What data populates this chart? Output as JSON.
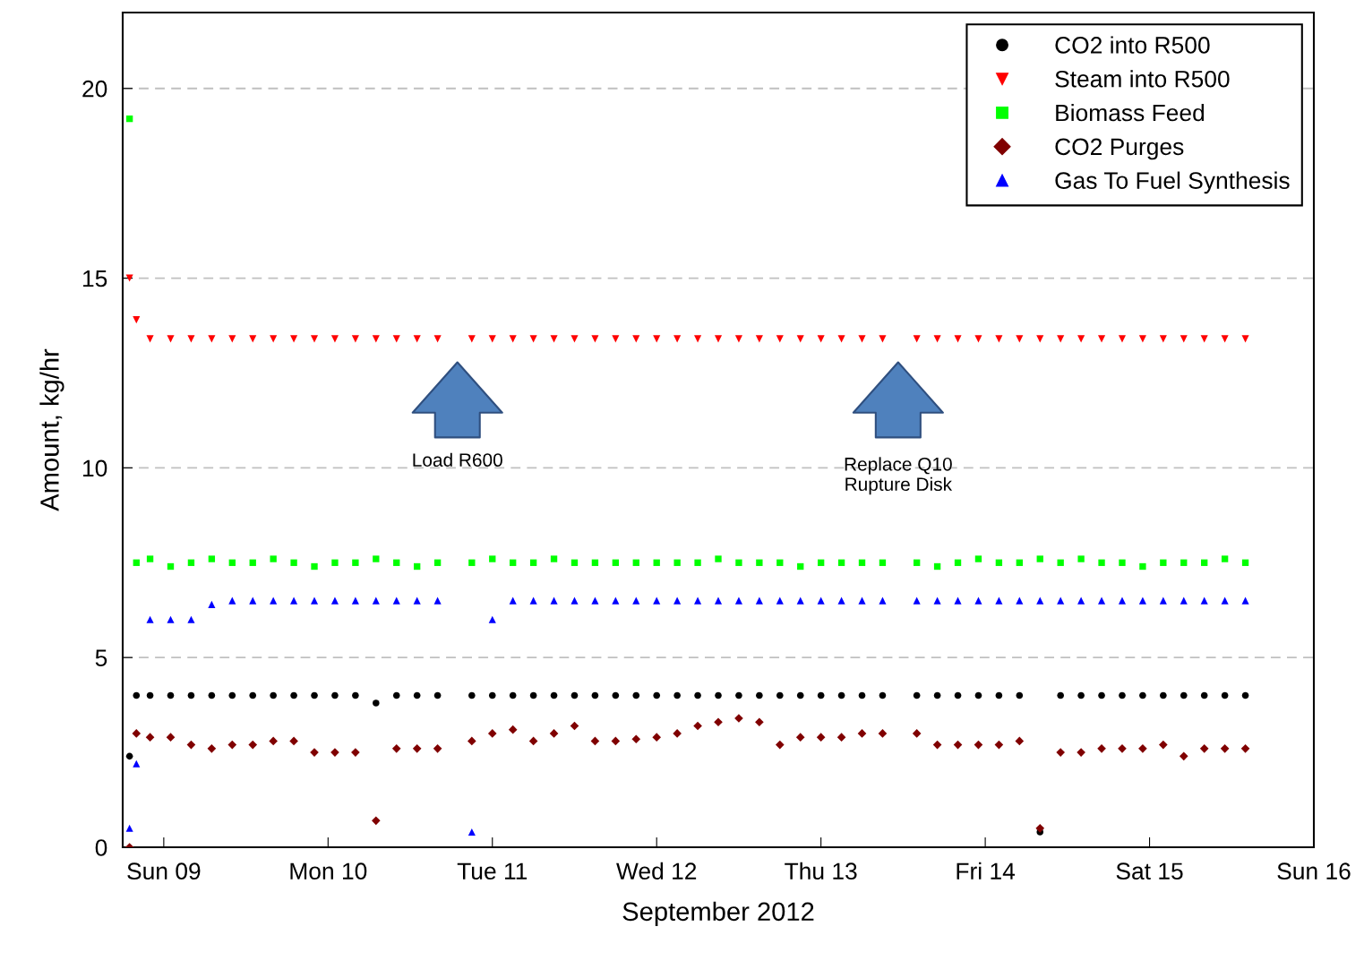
{
  "chart_data": {
    "type": "scatter",
    "xlabel": "September 2012",
    "ylabel": "Amount, kg/hr",
    "x": [
      "2012-09-08T19:00",
      "2012-09-08T20:00",
      "2012-09-08T22:00",
      "2012-09-09T01:00",
      "2012-09-09T04:00",
      "2012-09-09T07:00",
      "2012-09-09T10:00",
      "2012-09-09T13:00",
      "2012-09-09T16:00",
      "2012-09-09T19:00",
      "2012-09-09T22:00",
      "2012-09-10T01:00",
      "2012-09-10T04:00",
      "2012-09-10T07:00",
      "2012-09-10T10:00",
      "2012-09-10T13:00",
      "2012-09-10T16:00",
      "2012-09-10T21:00",
      "2012-09-11T00:00",
      "2012-09-11T03:00",
      "2012-09-11T06:00",
      "2012-09-11T09:00",
      "2012-09-11T12:00",
      "2012-09-11T15:00",
      "2012-09-11T18:00",
      "2012-09-11T21:00",
      "2012-09-12T00:00",
      "2012-09-12T03:00",
      "2012-09-12T06:00",
      "2012-09-12T09:00",
      "2012-09-12T12:00",
      "2012-09-12T15:00",
      "2012-09-12T18:00",
      "2012-09-12T21:00",
      "2012-09-13T00:00",
      "2012-09-13T03:00",
      "2012-09-13T06:00",
      "2012-09-13T09:00",
      "2012-09-13T14:00",
      "2012-09-13T17:00",
      "2012-09-13T20:00",
      "2012-09-13T23:00",
      "2012-09-14T02:00",
      "2012-09-14T05:00",
      "2012-09-14T08:00",
      "2012-09-14T11:00",
      "2012-09-14T14:00",
      "2012-09-14T17:00",
      "2012-09-14T20:00",
      "2012-09-14T23:00",
      "2012-09-15T02:00",
      "2012-09-15T05:00",
      "2012-09-15T08:00",
      "2012-09-15T11:00",
      "2012-09-15T14:00"
    ],
    "series": [
      {
        "name": "CO2 into R500",
        "color": "#000000",
        "marker": "circle",
        "values": [
          2.4,
          4.0,
          4.0,
          4.0,
          4.0,
          4.0,
          4.0,
          4.0,
          4.0,
          4.0,
          4.0,
          4.0,
          4.0,
          3.8,
          4.0,
          4.0,
          4.0,
          4.0,
          4.0,
          4.0,
          4.0,
          4.0,
          4.0,
          4.0,
          4.0,
          4.0,
          4.0,
          4.0,
          4.0,
          4.0,
          4.0,
          4.0,
          4.0,
          4.0,
          4.0,
          4.0,
          4.0,
          4.0,
          4.0,
          4.0,
          4.0,
          4.0,
          4.0,
          4.0,
          0.4,
          4.0,
          4.0,
          4.0,
          4.0,
          4.0,
          4.0,
          4.0,
          4.0,
          4.0,
          4.0
        ]
      },
      {
        "name": "Steam into R500",
        "color": "#ff0000",
        "marker": "triangle_down",
        "values": [
          15.0,
          13.9,
          13.4,
          13.4,
          13.4,
          13.4,
          13.4,
          13.4,
          13.4,
          13.4,
          13.4,
          13.4,
          13.4,
          13.4,
          13.4,
          13.4,
          13.4,
          13.4,
          13.4,
          13.4,
          13.4,
          13.4,
          13.4,
          13.4,
          13.4,
          13.4,
          13.4,
          13.4,
          13.4,
          13.4,
          13.4,
          13.4,
          13.4,
          13.4,
          13.4,
          13.4,
          13.4,
          13.4,
          13.4,
          13.4,
          13.4,
          13.4,
          13.4,
          13.4,
          13.4,
          13.4,
          13.4,
          13.4,
          13.4,
          13.4,
          13.4,
          13.4,
          13.4,
          13.4,
          13.4
        ]
      },
      {
        "name": "Biomass Feed",
        "color": "#00ff00",
        "marker": "square",
        "values": [
          19.2,
          7.5,
          7.6,
          7.4,
          7.5,
          7.6,
          7.5,
          7.5,
          7.6,
          7.5,
          7.4,
          7.5,
          7.5,
          7.6,
          7.5,
          7.4,
          7.5,
          7.5,
          7.6,
          7.5,
          7.5,
          7.6,
          7.5,
          7.5,
          7.5,
          7.5,
          7.5,
          7.5,
          7.5,
          7.6,
          7.5,
          7.5,
          7.5,
          7.4,
          7.5,
          7.5,
          7.5,
          7.5,
          7.5,
          7.4,
          7.5,
          7.6,
          7.5,
          7.5,
          7.6,
          7.5,
          7.6,
          7.5,
          7.5,
          7.4,
          7.5,
          7.5,
          7.5,
          7.6,
          7.5
        ]
      },
      {
        "name": "CO2 Purges",
        "color": "#800000",
        "marker": "diamond",
        "values": [
          0.0,
          3.0,
          2.9,
          2.9,
          2.7,
          2.6,
          2.7,
          2.7,
          2.8,
          2.8,
          2.5,
          2.5,
          2.5,
          0.7,
          2.6,
          2.6,
          2.6,
          2.8,
          3.0,
          3.1,
          2.8,
          3.0,
          3.2,
          2.8,
          2.8,
          2.85,
          2.9,
          3.0,
          3.2,
          3.3,
          3.4,
          3.3,
          2.7,
          2.9,
          2.9,
          2.9,
          3.0,
          3.0,
          3.0,
          2.7,
          2.7,
          2.7,
          2.7,
          2.8,
          0.5,
          2.5,
          2.5,
          2.6,
          2.6,
          2.6,
          2.7,
          2.4,
          2.6,
          2.6,
          2.6
        ]
      },
      {
        "name": "Gas To Fuel Synthesis",
        "color": "#0000ff",
        "marker": "triangle",
        "values": [
          0.5,
          2.2,
          6.0,
          6.0,
          6.0,
          6.4,
          6.5,
          6.5,
          6.5,
          6.5,
          6.5,
          6.5,
          6.5,
          6.5,
          6.5,
          6.5,
          6.5,
          0.4,
          6.0,
          6.5,
          6.5,
          6.5,
          6.5,
          6.5,
          6.5,
          6.5,
          6.5,
          6.5,
          6.5,
          6.5,
          6.5,
          6.5,
          6.5,
          6.5,
          6.5,
          6.5,
          6.5,
          6.5,
          6.5,
          6.5,
          6.5,
          6.5,
          6.5,
          6.5,
          6.5,
          6.5,
          6.5,
          6.5,
          6.5,
          6.5,
          6.5,
          6.5,
          6.5,
          6.5,
          6.5
        ]
      }
    ],
    "xlim": [
      "2012-09-08T18:00",
      "2012-09-16T00:00"
    ],
    "xticks": [
      {
        "value": "2012-09-09",
        "label": "Sun 09"
      },
      {
        "value": "2012-09-10",
        "label": "Mon 10"
      },
      {
        "value": "2012-09-11",
        "label": "Tue 11"
      },
      {
        "value": "2012-09-12",
        "label": "Wed 12"
      },
      {
        "value": "2012-09-13",
        "label": "Thu 13"
      },
      {
        "value": "2012-09-14",
        "label": "Fri 14"
      },
      {
        "value": "2012-09-15",
        "label": "Sat 15"
      },
      {
        "value": "2012-09-16",
        "label": "Sun 16"
      }
    ],
    "ylim": [
      0,
      22
    ],
    "yticks": [
      0,
      5,
      10,
      15,
      20
    ],
    "grid": "y",
    "legend": "top right",
    "annotations": [
      "Load R600",
      "Replace Q10\nRupture Disk"
    ]
  }
}
